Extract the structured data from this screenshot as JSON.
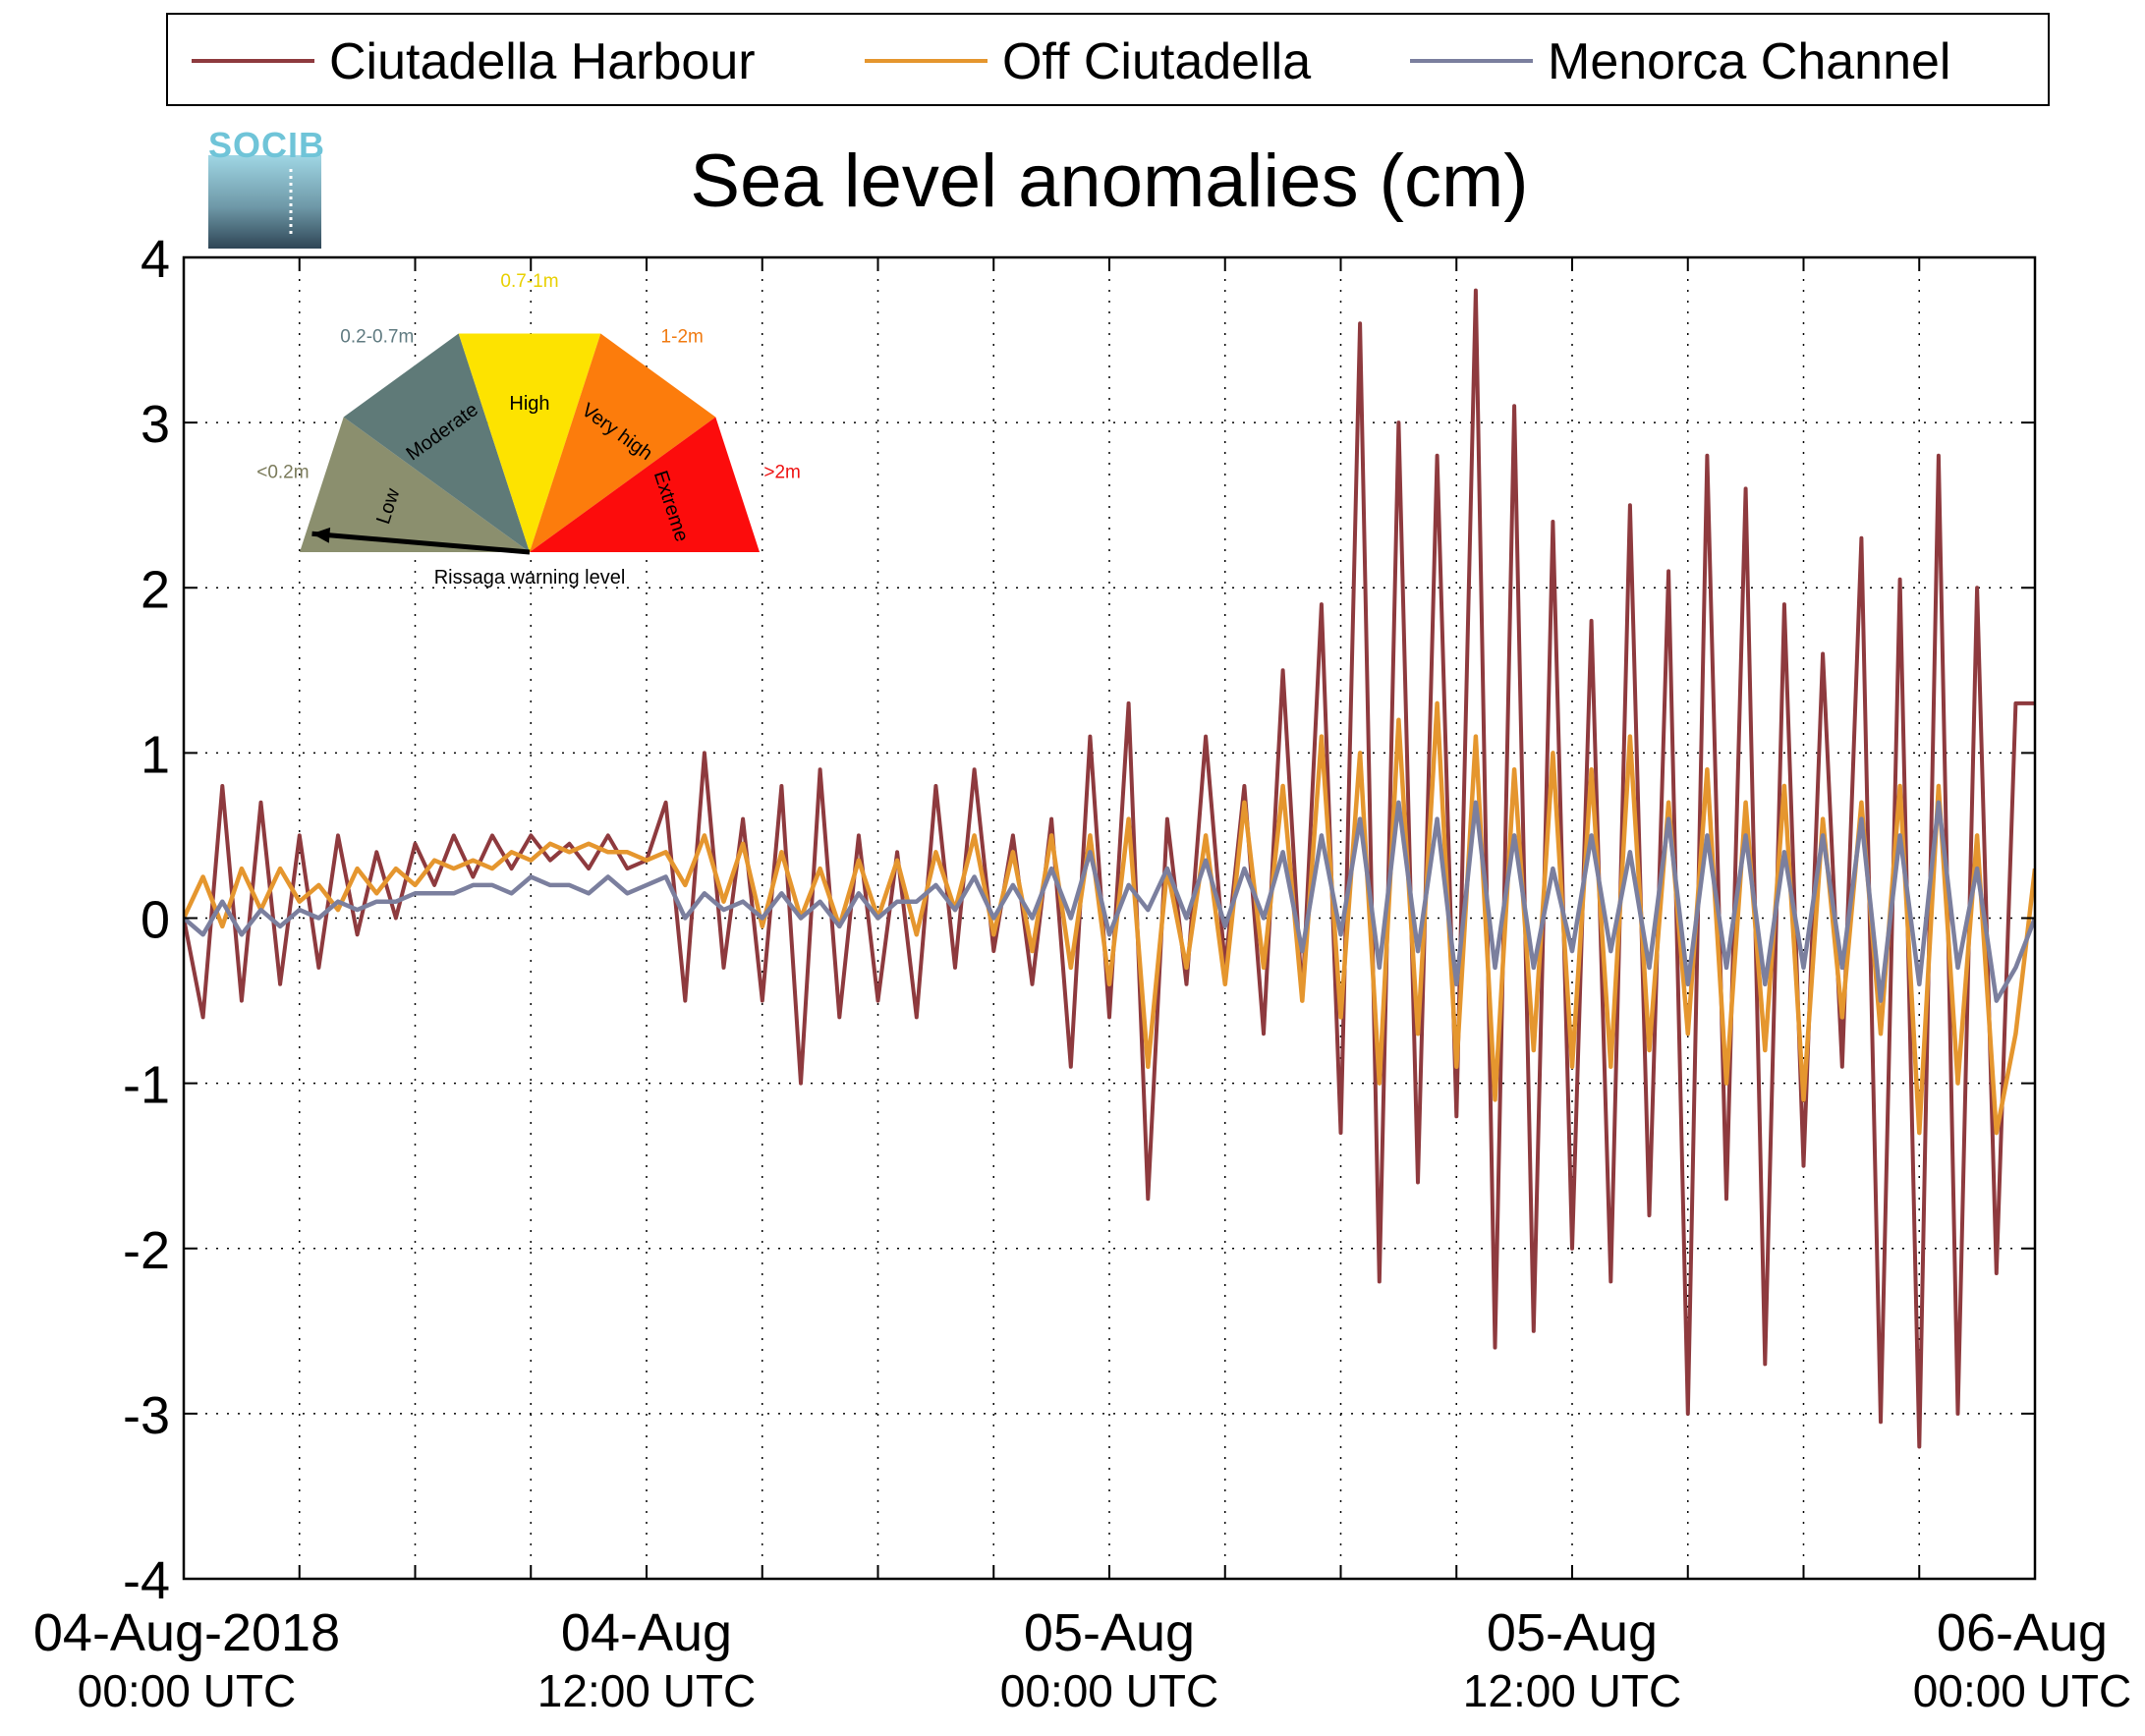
{
  "chart_data": {
    "type": "line",
    "title": "Sea level anomalies (cm)",
    "xlabel": "",
    "ylabel": "",
    "ylim": [
      -4,
      4
    ],
    "yticks": [
      4,
      3,
      2,
      1,
      0,
      -1,
      -2,
      -3,
      -4
    ],
    "grid": true,
    "legend_position": "top",
    "x_range_hours": [
      0,
      48
    ],
    "x_labeled_ticks": [
      {
        "hour": 0,
        "date": "04-Aug-2018",
        "time": "00:00 UTC"
      },
      {
        "hour": 12,
        "date": "04-Aug",
        "time": "12:00 UTC"
      },
      {
        "hour": 24,
        "date": "05-Aug",
        "time": "00:00 UTC"
      },
      {
        "hour": 36,
        "date": "05-Aug",
        "time": "12:00 UTC"
      },
      {
        "hour": 48,
        "date": "06-Aug",
        "time": "00:00 UTC"
      }
    ],
    "x_minor_tick_hours": [
      3,
      6,
      9,
      15,
      18,
      21,
      27,
      30,
      33,
      39,
      42,
      45
    ],
    "series": [
      {
        "name": "Ciutadella Harbour",
        "color": "#8e3a3e",
        "x_hours": [
          0,
          0.5,
          1,
          1.5,
          2,
          2.5,
          3,
          3.5,
          4,
          4.5,
          5,
          5.5,
          6,
          6.5,
          7,
          7.5,
          8,
          8.5,
          9,
          9.5,
          10,
          10.5,
          11,
          11.5,
          12,
          12.5,
          13,
          13.5,
          14,
          14.5,
          15,
          15.5,
          16,
          16.5,
          17,
          17.5,
          18,
          18.5,
          19,
          19.5,
          20,
          20.5,
          21,
          21.5,
          22,
          22.5,
          23,
          23.5,
          24,
          24.5,
          25,
          25.5,
          26,
          26.5,
          27,
          27.5,
          28,
          28.5,
          29,
          29.5,
          30,
          30.5,
          31,
          31.5,
          32,
          32.5,
          33,
          33.5,
          34,
          34.5,
          35,
          35.5,
          36,
          36.5,
          37,
          37.5,
          38,
          38.5,
          39,
          39.5,
          40,
          40.5,
          41,
          41.5,
          42,
          42.5,
          43,
          43.5,
          44,
          44.5,
          45,
          45.5,
          46,
          46.5,
          47,
          47.5,
          48
        ],
        "values": [
          0.0,
          -0.6,
          0.8,
          -0.5,
          0.7,
          -0.4,
          0.5,
          -0.3,
          0.5,
          -0.1,
          0.4,
          0.0,
          0.45,
          0.2,
          0.5,
          0.25,
          0.5,
          0.3,
          0.5,
          0.35,
          0.45,
          0.3,
          0.5,
          0.3,
          0.35,
          0.7,
          -0.5,
          1.0,
          -0.3,
          0.6,
          -0.5,
          0.8,
          -1.0,
          0.9,
          -0.6,
          0.5,
          -0.5,
          0.4,
          -0.6,
          0.8,
          -0.3,
          0.9,
          -0.2,
          0.5,
          -0.4,
          0.6,
          -0.9,
          1.1,
          -0.6,
          1.3,
          -1.7,
          0.6,
          -0.4,
          1.1,
          -0.3,
          0.8,
          -0.7,
          1.5,
          -0.5,
          1.9,
          -1.3,
          3.6,
          -2.2,
          3.0,
          -1.6,
          2.8,
          -1.2,
          3.8,
          -2.6,
          3.1,
          -2.5,
          2.4,
          -2.0,
          1.8,
          -2.2,
          2.5,
          -1.8,
          2.1,
          -3.0,
          2.8,
          -1.7,
          2.6,
          -2.7,
          1.9,
          -1.5,
          1.6,
          -0.9,
          2.3,
          -3.05,
          2.05,
          -3.2,
          2.8,
          -3.0,
          2.0,
          -2.15,
          1.3,
          1.3
        ]
      },
      {
        "name": "Off Ciutadella",
        "color": "#e5962e",
        "x_hours": [
          0,
          0.5,
          1,
          1.5,
          2,
          2.5,
          3,
          3.5,
          4,
          4.5,
          5,
          5.5,
          6,
          6.5,
          7,
          7.5,
          8,
          8.5,
          9,
          9.5,
          10,
          10.5,
          11,
          11.5,
          12,
          12.5,
          13,
          13.5,
          14,
          14.5,
          15,
          15.5,
          16,
          16.5,
          17,
          17.5,
          18,
          18.5,
          19,
          19.5,
          20,
          20.5,
          21,
          21.5,
          22,
          22.5,
          23,
          23.5,
          24,
          24.5,
          25,
          25.5,
          26,
          26.5,
          27,
          27.5,
          28,
          28.5,
          29,
          29.5,
          30,
          30.5,
          31,
          31.5,
          32,
          32.5,
          33,
          33.5,
          34,
          34.5,
          35,
          35.5,
          36,
          36.5,
          37,
          37.5,
          38,
          38.5,
          39,
          39.5,
          40,
          40.5,
          41,
          41.5,
          42,
          42.5,
          43,
          43.5,
          44,
          44.5,
          45,
          45.5,
          46,
          46.5,
          47,
          47.5,
          48
        ],
        "values": [
          0.0,
          0.25,
          -0.05,
          0.3,
          0.05,
          0.3,
          0.1,
          0.2,
          0.05,
          0.3,
          0.15,
          0.3,
          0.2,
          0.35,
          0.3,
          0.35,
          0.3,
          0.4,
          0.35,
          0.45,
          0.4,
          0.45,
          0.4,
          0.4,
          0.35,
          0.4,
          0.2,
          0.5,
          0.1,
          0.45,
          -0.05,
          0.4,
          0.0,
          0.3,
          -0.05,
          0.35,
          0.0,
          0.35,
          -0.1,
          0.4,
          0.05,
          0.5,
          -0.1,
          0.4,
          -0.2,
          0.5,
          -0.3,
          0.5,
          -0.4,
          0.6,
          -0.9,
          0.3,
          -0.3,
          0.5,
          -0.4,
          0.7,
          -0.3,
          0.8,
          -0.5,
          1.1,
          -0.6,
          1.0,
          -1.0,
          1.2,
          -0.7,
          1.3,
          -0.9,
          1.1,
          -1.1,
          0.9,
          -0.8,
          1.0,
          -0.9,
          0.9,
          -0.9,
          1.1,
          -0.8,
          0.7,
          -0.7,
          0.9,
          -1.0,
          0.7,
          -0.8,
          0.8,
          -1.1,
          0.6,
          -0.6,
          0.7,
          -0.7,
          0.8,
          -1.3,
          0.8,
          -1.0,
          0.5,
          -1.3,
          -0.7,
          0.3
        ]
      },
      {
        "name": "Menorca Channel",
        "color": "#7b7f9e",
        "x_hours": [
          0,
          0.5,
          1,
          1.5,
          2,
          2.5,
          3,
          3.5,
          4,
          4.5,
          5,
          5.5,
          6,
          6.5,
          7,
          7.5,
          8,
          8.5,
          9,
          9.5,
          10,
          10.5,
          11,
          11.5,
          12,
          12.5,
          13,
          13.5,
          14,
          14.5,
          15,
          15.5,
          16,
          16.5,
          17,
          17.5,
          18,
          18.5,
          19,
          19.5,
          20,
          20.5,
          21,
          21.5,
          22,
          22.5,
          23,
          23.5,
          24,
          24.5,
          25,
          25.5,
          26,
          26.5,
          27,
          27.5,
          28,
          28.5,
          29,
          29.5,
          30,
          30.5,
          31,
          31.5,
          32,
          32.5,
          33,
          33.5,
          34,
          34.5,
          35,
          35.5,
          36,
          36.5,
          37,
          37.5,
          38,
          38.5,
          39,
          39.5,
          40,
          40.5,
          41,
          41.5,
          42,
          42.5,
          43,
          43.5,
          44,
          44.5,
          45,
          45.5,
          46,
          46.5,
          47,
          47.5,
          48
        ],
        "values": [
          0.0,
          -0.1,
          0.1,
          -0.1,
          0.05,
          -0.05,
          0.05,
          0.0,
          0.1,
          0.05,
          0.1,
          0.1,
          0.15,
          0.15,
          0.15,
          0.2,
          0.2,
          0.15,
          0.25,
          0.2,
          0.2,
          0.15,
          0.25,
          0.15,
          0.2,
          0.25,
          0.0,
          0.15,
          0.05,
          0.1,
          0.0,
          0.15,
          0.0,
          0.1,
          -0.05,
          0.15,
          0.0,
          0.1,
          0.1,
          0.2,
          0.05,
          0.25,
          0.0,
          0.2,
          0.0,
          0.3,
          0.0,
          0.4,
          -0.1,
          0.2,
          0.05,
          0.3,
          0.0,
          0.35,
          -0.05,
          0.3,
          0.0,
          0.4,
          -0.2,
          0.5,
          -0.1,
          0.6,
          -0.3,
          0.7,
          -0.2,
          0.6,
          -0.4,
          0.7,
          -0.3,
          0.5,
          -0.3,
          0.3,
          -0.2,
          0.5,
          -0.2,
          0.4,
          -0.3,
          0.6,
          -0.4,
          0.5,
          -0.3,
          0.5,
          -0.4,
          0.4,
          -0.3,
          0.5,
          -0.3,
          0.6,
          -0.5,
          0.5,
          -0.4,
          0.7,
          -0.3,
          0.3,
          -0.5,
          -0.3,
          0.0
        ]
      }
    ]
  },
  "logo": {
    "text": "SOCIB"
  },
  "inset": {
    "caption": "Rissaga warning level",
    "segments": [
      {
        "name": "Low",
        "range": "<0.2m",
        "color": "#8b8f6e",
        "range_color": "#7a7a5a"
      },
      {
        "name": "Moderate",
        "range": "0.2-0.7m",
        "color": "#5f7a78",
        "range_color": "#5f7a80"
      },
      {
        "name": "High",
        "range": "0.7-1m",
        "color": "#fde300",
        "range_color": "#e8d000"
      },
      {
        "name": "Very high",
        "range": "1-2m",
        "color": "#fc7c0c",
        "range_color": "#f07a10"
      },
      {
        "name": "Extreme",
        "range": ">2m",
        "color": "#fc0c0c",
        "range_color": "#ee1111"
      }
    ],
    "needle_level_index": 0
  }
}
